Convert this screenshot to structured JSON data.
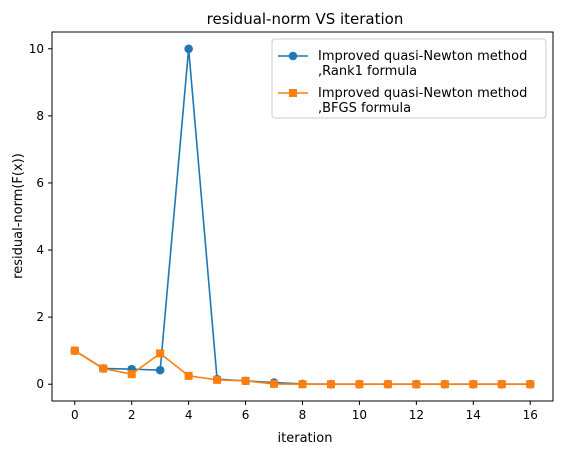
{
  "chart_data": {
    "type": "line",
    "title": "residual-norm VS iteration",
    "xlabel": "iteration",
    "ylabel": "residual-norm(F(x))",
    "xlim": [
      -0.8,
      16.8
    ],
    "ylim": [
      -0.5,
      10.5
    ],
    "xticks": [
      0,
      2,
      4,
      6,
      8,
      10,
      12,
      14,
      16
    ],
    "yticks": [
      0,
      2,
      4,
      6,
      8,
      10
    ],
    "grid": false,
    "legend_position": "top-right",
    "series": [
      {
        "name": "Improved quasi-Newton method\n,Rank1 formula",
        "legend_lines": [
          "Improved quasi-Newton method",
          ",Rank1 formula"
        ],
        "color": "#1f77b4",
        "marker": "circle",
        "x": [
          0,
          1,
          2,
          3,
          4,
          5,
          6,
          7,
          8,
          9,
          10,
          11,
          12,
          13,
          14,
          15,
          16
        ],
        "y": [
          1.0,
          0.47,
          0.45,
          0.42,
          10.0,
          0.15,
          0.1,
          0.05,
          0.01,
          0.0,
          0.0,
          0.0,
          0.0,
          0.0,
          0.0,
          0.0,
          0.0
        ]
      },
      {
        "name": "Improved quasi-Newton method\n,BFGS formula",
        "legend_lines": [
          "Improved quasi-Newton method",
          ",BFGS formula"
        ],
        "color": "#ff7f0e",
        "marker": "square",
        "x": [
          0,
          1,
          2,
          3,
          4,
          5,
          6,
          7,
          8,
          9,
          10,
          11,
          12,
          13,
          14,
          15,
          16
        ],
        "y": [
          1.0,
          0.47,
          0.3,
          0.92,
          0.25,
          0.13,
          0.1,
          0.01,
          0.0,
          0.0,
          0.0,
          0.0,
          0.0,
          0.0,
          0.0,
          0.0,
          0.0
        ]
      }
    ]
  }
}
